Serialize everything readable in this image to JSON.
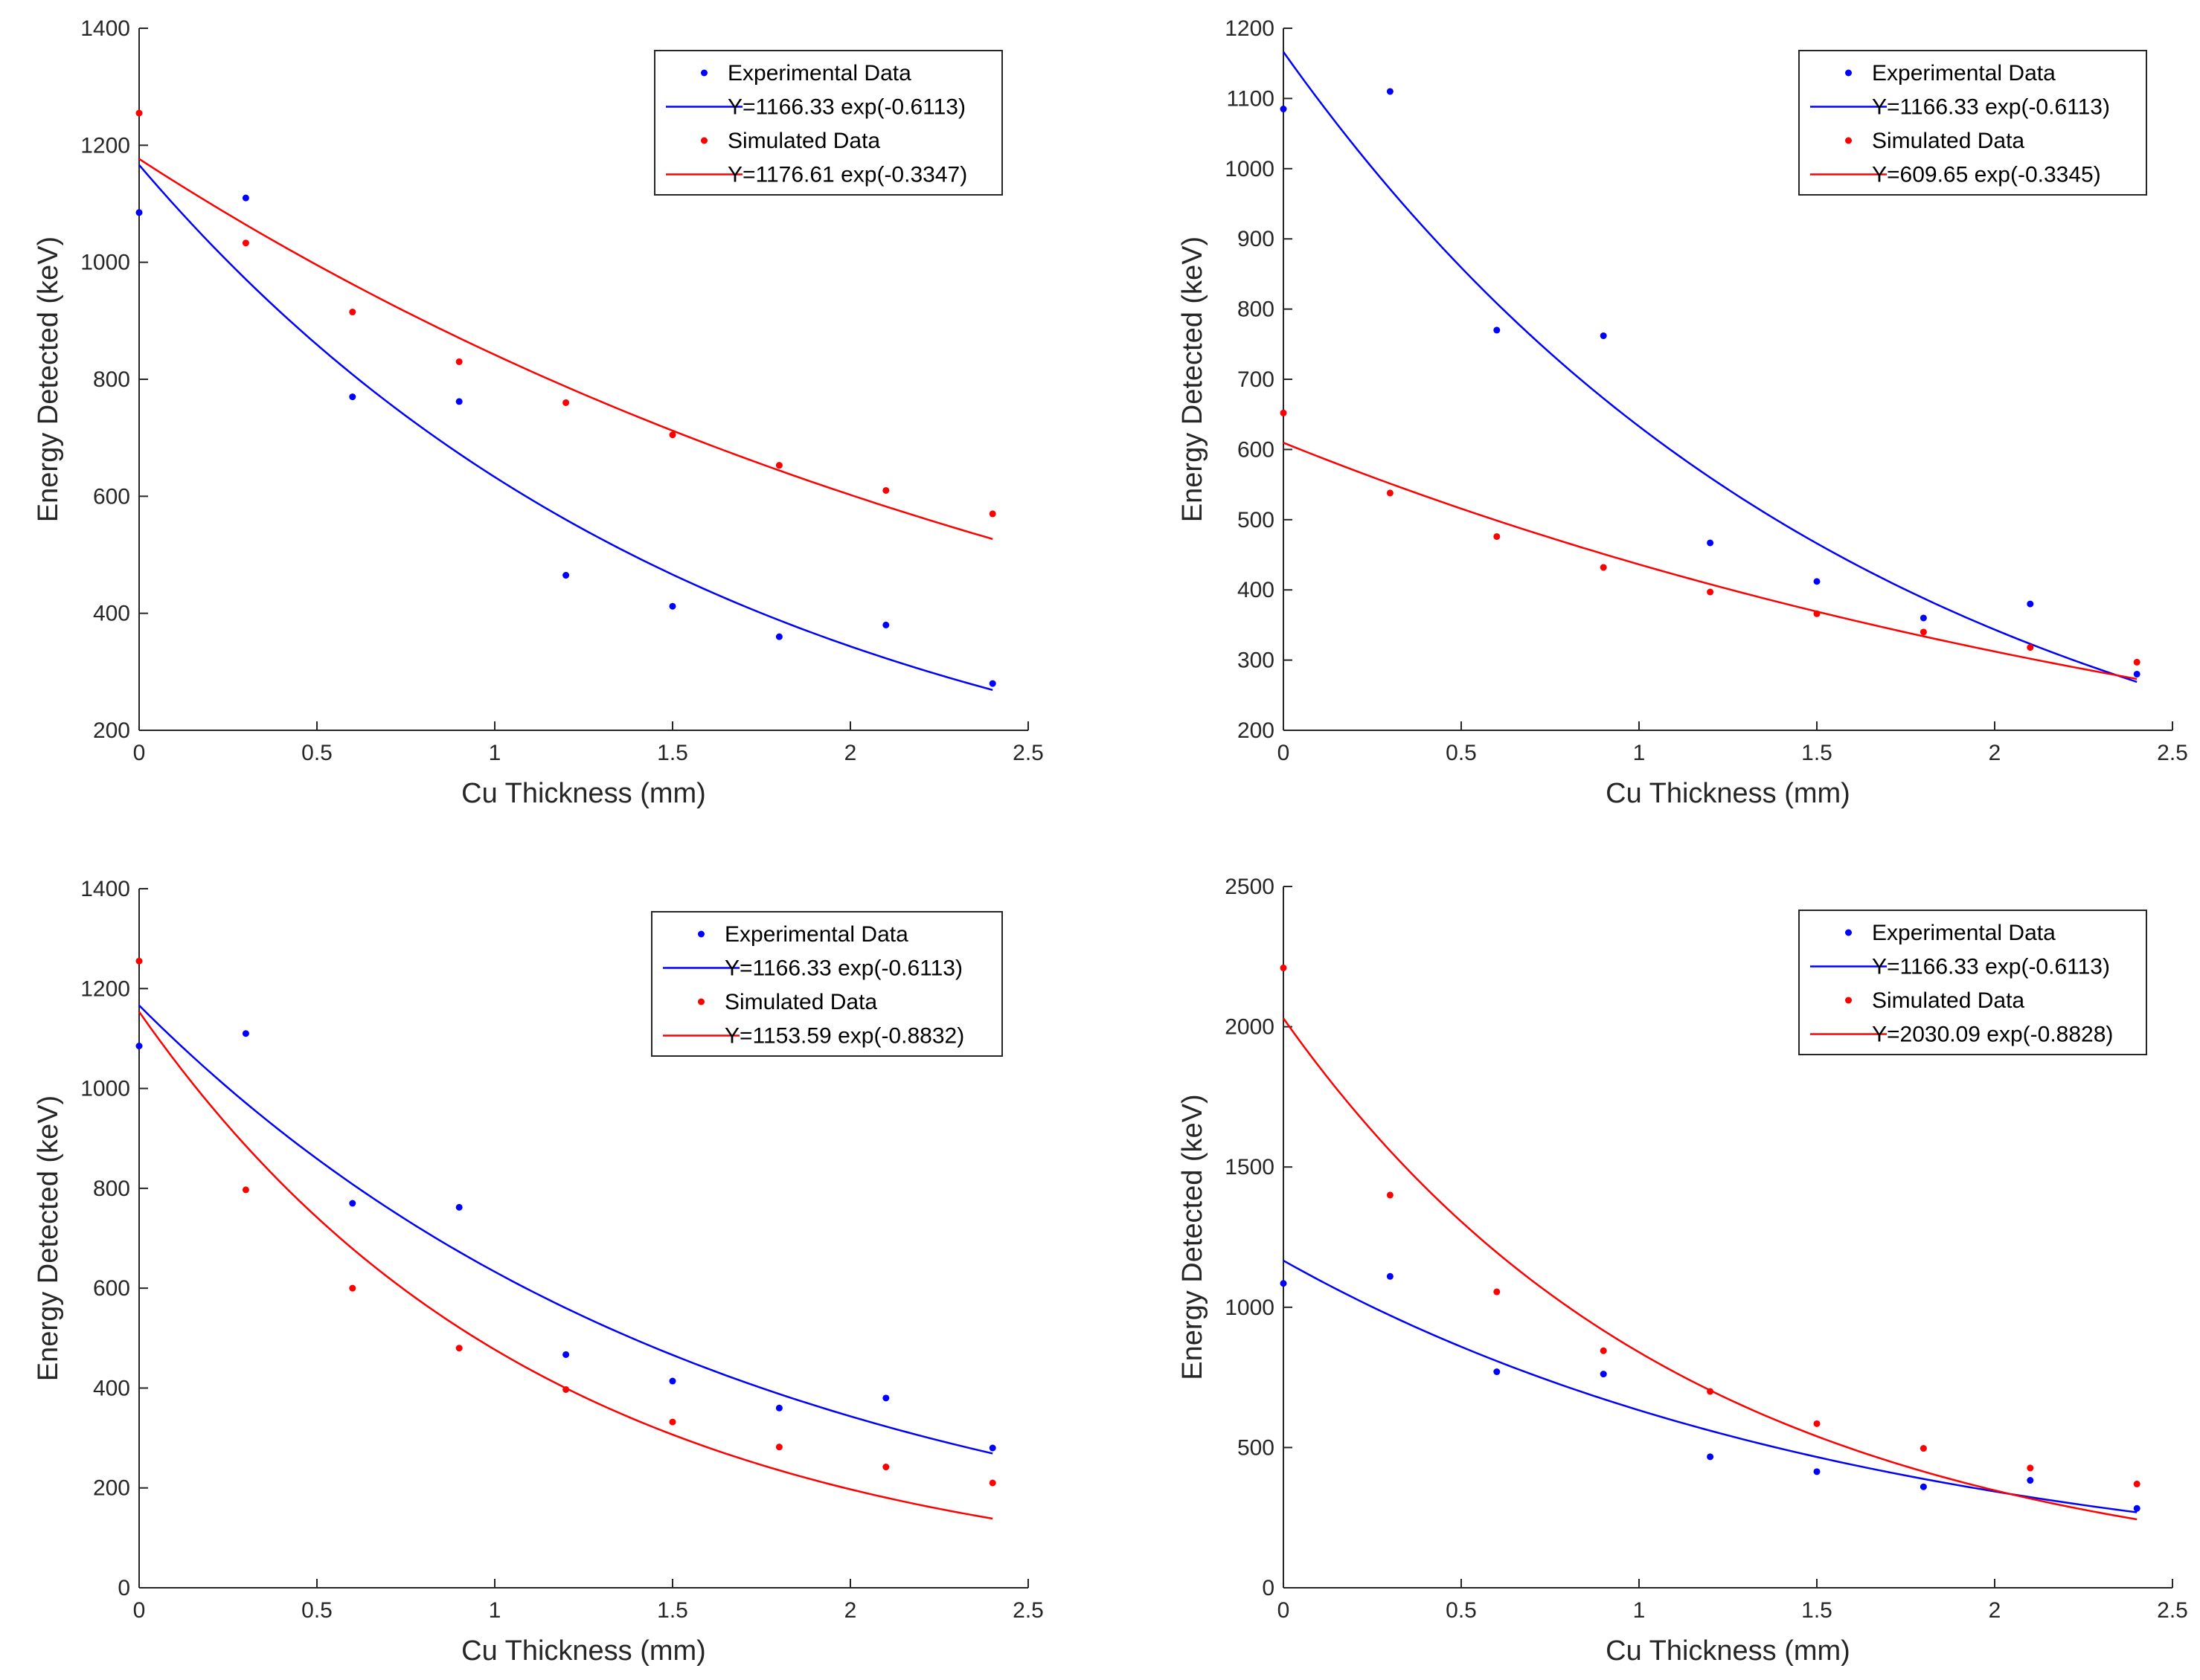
{
  "chart_data": [
    {
      "type": "scatter",
      "xlabel": "Cu Thickness (mm)",
      "ylabel": "Energy Detected (keV)",
      "xlim": [
        0,
        2.5
      ],
      "ylim": [
        200,
        1400
      ],
      "xticks": [
        0,
        0.5,
        1,
        1.5,
        2,
        2.5
      ],
      "yticks": [
        200,
        400,
        600,
        800,
        1000,
        1200,
        1400
      ],
      "xtick_labels": [
        "0",
        "0.5",
        "1",
        "1.5",
        "2",
        "2.5"
      ],
      "ytick_labels": [
        "200",
        "400",
        "600",
        "800",
        "1000",
        "1200",
        "1400"
      ],
      "legend_position": "top-right",
      "series": [
        {
          "name": "Experimental Data",
          "kind": "points",
          "color": "#0000ff",
          "x": [
            0,
            0.3,
            0.6,
            0.9,
            1.2,
            1.5,
            1.8,
            2.1,
            2.4
          ],
          "y": [
            1085,
            1110,
            770,
            762,
            465,
            412,
            360,
            380,
            280
          ]
        },
        {
          "name": "Y=1166.33 exp(-0.6113)",
          "kind": "fit",
          "color": "#0000ff",
          "a": 1166.33,
          "b": -0.6113,
          "x_range": [
            0,
            2.4
          ]
        },
        {
          "name": "Simulated Data",
          "kind": "points",
          "color": "#ff0000",
          "x": [
            0,
            0.3,
            0.6,
            0.9,
            1.2,
            1.5,
            1.8,
            2.1,
            2.4
          ],
          "y": [
            1255,
            1033,
            915,
            830,
            760,
            705,
            653,
            610,
            570
          ]
        },
        {
          "name": "Y=1176.61 exp(-0.3347)",
          "kind": "fit",
          "color": "#ff0000",
          "a": 1176.61,
          "b": -0.3347,
          "x_range": [
            0,
            2.4
          ]
        }
      ]
    },
    {
      "type": "scatter",
      "xlabel": "Cu Thickness (mm)",
      "ylabel": "Energy Detected (keV)",
      "xlim": [
        0,
        2.5
      ],
      "ylim": [
        200,
        1200
      ],
      "xticks": [
        0,
        0.5,
        1,
        1.5,
        2,
        2.5
      ],
      "yticks": [
        200,
        300,
        400,
        500,
        600,
        700,
        800,
        900,
        1000,
        1100,
        1200
      ],
      "xtick_labels": [
        "0",
        "0.5",
        "1",
        "1.5",
        "2",
        "2.5"
      ],
      "ytick_labels": [
        "200",
        "300",
        "400",
        "500",
        "600",
        "700",
        "800",
        "900",
        "1000",
        "1100",
        "1200"
      ],
      "legend_position": "top-right",
      "series": [
        {
          "name": "Experimental Data",
          "kind": "points",
          "color": "#0000ff",
          "x": [
            0,
            0.3,
            0.6,
            0.9,
            1.2,
            1.5,
            1.8,
            2.1,
            2.4
          ],
          "y": [
            1085,
            1110,
            770,
            762,
            467,
            412,
            360,
            380,
            280
          ]
        },
        {
          "name": "Y=1166.33 exp(-0.6113)",
          "kind": "fit",
          "color": "#0000ff",
          "a": 1166.33,
          "b": -0.6113,
          "x_range": [
            0,
            2.4
          ]
        },
        {
          "name": "Simulated Data",
          "kind": "points",
          "color": "#ff0000",
          "x": [
            0,
            0.3,
            0.6,
            0.9,
            1.2,
            1.5,
            1.8,
            2.1,
            2.4
          ],
          "y": [
            652,
            538,
            476,
            432,
            397,
            366,
            340,
            318,
            297
          ]
        },
        {
          "name": "Y=609.65 exp(-0.3345)",
          "kind": "fit",
          "color": "#ff0000",
          "a": 609.65,
          "b": -0.3345,
          "x_range": [
            0,
            2.4
          ]
        }
      ]
    },
    {
      "type": "scatter",
      "xlabel": "Cu Thickness (mm)",
      "ylabel": "Energy Detected (keV)",
      "xlim": [
        0,
        2.5
      ],
      "ylim": [
        0,
        1400
      ],
      "xticks": [
        0,
        0.5,
        1,
        1.5,
        2,
        2.5
      ],
      "yticks": [
        0,
        200,
        400,
        600,
        800,
        1000,
        1200,
        1400
      ],
      "xtick_labels": [
        "0",
        "0.5",
        "1",
        "1.5",
        "2",
        "2.5"
      ],
      "ytick_labels": [
        "0",
        "200",
        "400",
        "600",
        "800",
        "1000",
        "1200",
        "1400"
      ],
      "legend_position": "top-right",
      "series": [
        {
          "name": "Experimental Data",
          "kind": "points",
          "color": "#0000ff",
          "x": [
            0,
            0.3,
            0.6,
            0.9,
            1.2,
            1.5,
            1.8,
            2.1,
            2.4
          ],
          "y": [
            1085,
            1110,
            770,
            762,
            467,
            414,
            360,
            380,
            280
          ]
        },
        {
          "name": "Y=1166.33 exp(-0.6113)",
          "kind": "fit",
          "color": "#0000ff",
          "a": 1166.33,
          "b": -0.6113,
          "x_range": [
            0,
            2.4
          ]
        },
        {
          "name": "Simulated Data",
          "kind": "points",
          "color": "#ff0000",
          "x": [
            0,
            0.3,
            0.6,
            0.9,
            1.2,
            1.5,
            1.8,
            2.1,
            2.4
          ],
          "y": [
            1255,
            797,
            600,
            480,
            397,
            332,
            282,
            242,
            210
          ]
        },
        {
          "name": "Y=1153.59 exp(-0.8832)",
          "kind": "fit",
          "color": "#ff0000",
          "a": 1153.59,
          "b": -0.8832,
          "x_range": [
            0,
            2.4
          ]
        }
      ]
    },
    {
      "type": "scatter",
      "xlabel": "Cu Thickness (mm)",
      "ylabel": "Energy Detected (keV)",
      "xlim": [
        0,
        2.5
      ],
      "ylim": [
        0,
        2500
      ],
      "xticks": [
        0,
        0.5,
        1,
        1.5,
        2,
        2.5
      ],
      "yticks": [
        0,
        500,
        1000,
        1500,
        2000,
        2500
      ],
      "xtick_labels": [
        "0",
        "0.5",
        "1",
        "1.5",
        "2",
        "2.5"
      ],
      "ytick_labels": [
        "0",
        "500",
        "1000",
        "1500",
        "2000",
        "2500"
      ],
      "legend_position": "top-right",
      "series": [
        {
          "name": "Experimental Data",
          "kind": "points",
          "color": "#0000ff",
          "x": [
            0,
            0.3,
            0.6,
            0.9,
            1.2,
            1.5,
            1.8,
            2.1,
            2.4
          ],
          "y": [
            1085,
            1110,
            770,
            762,
            467,
            414,
            360,
            383,
            283
          ]
        },
        {
          "name": "Y=1166.33 exp(-0.6113)",
          "kind": "fit",
          "color": "#0000ff",
          "a": 1166.33,
          "b": -0.6113,
          "x_range": [
            0,
            2.4
          ]
        },
        {
          "name": "Simulated Data",
          "kind": "points",
          "color": "#ff0000",
          "x": [
            0,
            0.3,
            0.6,
            0.9,
            1.2,
            1.5,
            1.8,
            2.1,
            2.4
          ],
          "y": [
            2210,
            1400,
            1055,
            845,
            700,
            585,
            497,
            427,
            370
          ]
        },
        {
          "name": "Y=2030.09 exp(-0.8828)",
          "kind": "fit",
          "color": "#ff0000",
          "a": 2030.09,
          "b": -0.8828,
          "x_range": [
            0,
            2.4
          ]
        }
      ]
    }
  ]
}
